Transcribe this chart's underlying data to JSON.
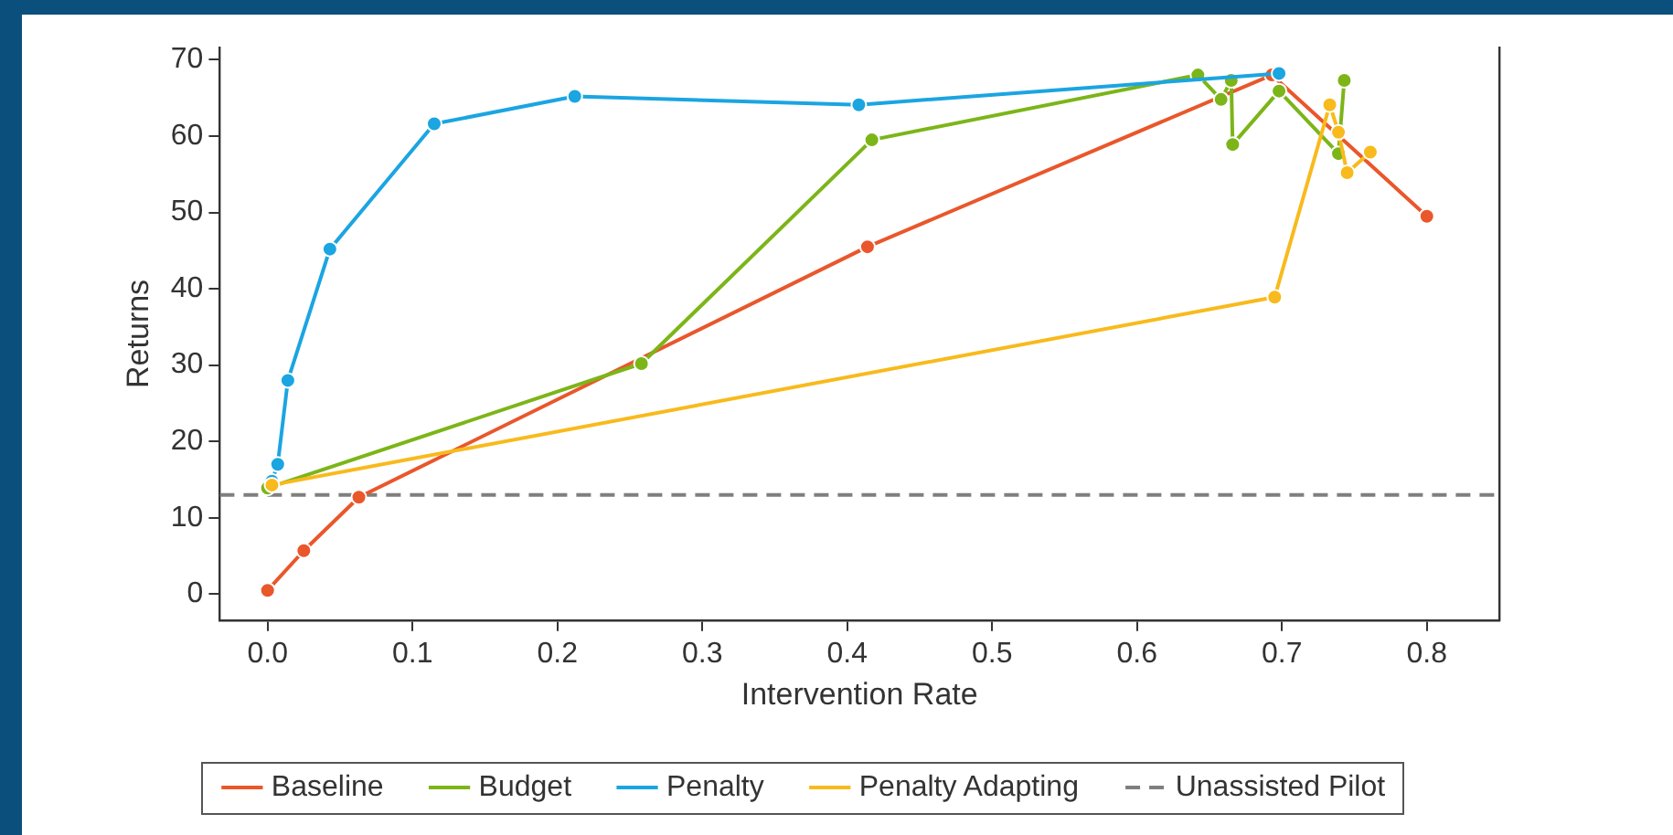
{
  "chart_data": {
    "type": "line",
    "xlabel": "Intervention Rate",
    "ylabel": "Returns",
    "xlim": [
      -0.033,
      0.85
    ],
    "xticks": [
      {
        "value": 0,
        "label": "0.0"
      },
      0.1,
      0.2,
      0.3,
      0.4,
      0.5,
      0.6,
      0.7,
      0.8
    ],
    "ylim": [
      -3.4,
      71.6
    ],
    "yticks": [
      0,
      10,
      20,
      30,
      40,
      50,
      60,
      70
    ],
    "series": [
      {
        "name": "Baseline",
        "color": "#e9572b",
        "x": [
          0,
          0.025,
          0.063,
          0.414,
          0.693,
          0.8
        ],
        "values": [
          0.5,
          5.7,
          12.7,
          45.5,
          68,
          49.5
        ]
      },
      {
        "name": "Budget",
        "color": "#7cb518",
        "x": [
          0,
          0.258,
          0.417,
          0.642,
          0.658,
          0.665,
          0.666,
          0.698,
          0.739,
          0.743
        ],
        "values": [
          13.9,
          30.2,
          59.5,
          68,
          64.8,
          67.3,
          58.9,
          65.9,
          57.7,
          67.3
        ]
      },
      {
        "name": "Penalty",
        "color": "#1ba5e1",
        "x": [
          0.003,
          0.007,
          0.014,
          0.043,
          0.115,
          0.212,
          0.408,
          0.698
        ],
        "values": [
          14.8,
          17,
          28,
          45.2,
          61.6,
          65.2,
          64.1,
          68.2
        ]
      },
      {
        "name": "Penalty Adapting",
        "color": "#f8ba1c",
        "x": [
          0.003,
          0.695,
          0.733,
          0.739,
          0.745,
          0.761
        ],
        "values": [
          14.3,
          38.9,
          64.1,
          60.5,
          55.2,
          57.9
        ]
      }
    ],
    "ref_lines": [
      {
        "axis": "y",
        "value": 13,
        "label": "Unassisted Pilot",
        "color": "#7f7f7f",
        "line_style": "dashed"
      }
    ],
    "legend": "bottom",
    "marker": "circle",
    "grid": false
  }
}
